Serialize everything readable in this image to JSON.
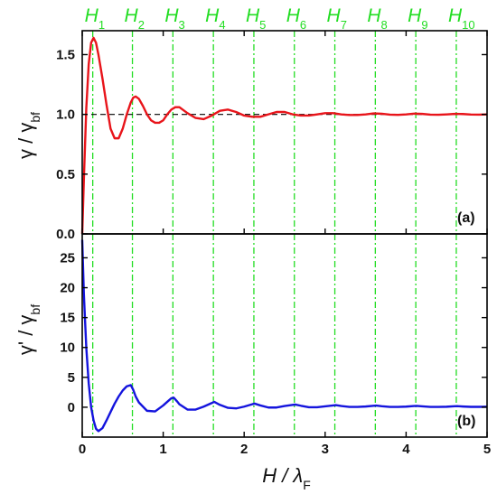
{
  "chart_data": [
    {
      "panel_tag": "(a)",
      "type": "line",
      "ylabel": {
        "main": "γ / γ",
        "sub": "bf"
      },
      "xlim": [
        0,
        5
      ],
      "ylim": [
        0,
        1.7
      ],
      "yticks": [
        "0.0",
        "0.5",
        "1.0",
        "1.5"
      ],
      "yticks_values": [
        0,
        0.5,
        1.0,
        1.5
      ],
      "reference_line": {
        "y": 1.0,
        "style": "dashed",
        "color": "#000000"
      },
      "series": [
        {
          "color": "#e8141a",
          "x": [
            0,
            0.02,
            0.05,
            0.08,
            0.11,
            0.14,
            0.17,
            0.2,
            0.25,
            0.3,
            0.35,
            0.4,
            0.45,
            0.5,
            0.55,
            0.6,
            0.63,
            0.66,
            0.7,
            0.75,
            0.8,
            0.85,
            0.9,
            0.95,
            1.0,
            1.05,
            1.1,
            1.15,
            1.2,
            1.3,
            1.4,
            1.5,
            1.6,
            1.7,
            1.8,
            1.9,
            2.0,
            2.1,
            2.2,
            2.3,
            2.4,
            2.5,
            2.6,
            2.7,
            2.8,
            2.9,
            3.0,
            3.1,
            3.2,
            3.3,
            3.4,
            3.5,
            3.6,
            3.7,
            3.8,
            3.9,
            4.0,
            4.1,
            4.2,
            4.3,
            4.4,
            4.5,
            4.6,
            4.7,
            4.8,
            4.9,
            5.0
          ],
          "y": [
            0.0,
            0.45,
            1.05,
            1.42,
            1.6,
            1.64,
            1.6,
            1.5,
            1.3,
            1.08,
            0.88,
            0.8,
            0.8,
            0.88,
            1.0,
            1.1,
            1.14,
            1.15,
            1.13,
            1.07,
            1.0,
            0.95,
            0.93,
            0.93,
            0.95,
            1.0,
            1.04,
            1.06,
            1.06,
            1.01,
            0.97,
            0.96,
            0.99,
            1.03,
            1.04,
            1.02,
            0.99,
            0.98,
            0.98,
            1.0,
            1.02,
            1.02,
            1.0,
            0.99,
            0.99,
            1.0,
            1.01,
            1.01,
            1.0,
            0.995,
            0.995,
            1.0,
            1.008,
            1.005,
            0.998,
            0.996,
            1.0,
            1.006,
            1.004,
            0.998,
            0.997,
            1.0,
            1.004,
            1.003,
            0.999,
            0.998,
            1.0
          ]
        }
      ]
    },
    {
      "panel_tag": "(b)",
      "type": "line",
      "ylabel": {
        "main": "γ' / γ",
        "sub": "bf"
      },
      "xlabel": {
        "main": "H / λ",
        "sub": "F"
      },
      "xlim": [
        0,
        5
      ],
      "ylim": [
        -5,
        29
      ],
      "xticks": [
        "0",
        "1",
        "2",
        "3",
        "4",
        "5"
      ],
      "xticks_values": [
        0,
        1,
        2,
        3,
        4,
        5
      ],
      "yticks": [
        "0",
        "5",
        "10",
        "15",
        "20",
        "25"
      ],
      "yticks_values": [
        0,
        5,
        10,
        15,
        20,
        25
      ],
      "series": [
        {
          "color": "#1414dd",
          "x": [
            0,
            0.02,
            0.05,
            0.08,
            0.11,
            0.14,
            0.17,
            0.2,
            0.25,
            0.3,
            0.35,
            0.4,
            0.45,
            0.5,
            0.55,
            0.6,
            0.63,
            0.66,
            0.7,
            0.8,
            0.9,
            1.0,
            1.05,
            1.1,
            1.13,
            1.17,
            1.2,
            1.3,
            1.4,
            1.5,
            1.6,
            1.63,
            1.7,
            1.8,
            1.9,
            2.0,
            2.1,
            2.13,
            2.2,
            2.3,
            2.4,
            2.5,
            2.6,
            2.63,
            2.7,
            2.8,
            2.9,
            3.0,
            3.1,
            3.13,
            3.2,
            3.3,
            3.4,
            3.5,
            3.6,
            3.63,
            3.7,
            3.8,
            3.9,
            4.0,
            4.1,
            4.13,
            4.2,
            4.3,
            4.4,
            4.5,
            4.6,
            4.63,
            4.7,
            4.8,
            4.9,
            5.0
          ],
          "y": [
            28,
            19,
            10,
            4,
            0,
            -2.2,
            -3.6,
            -4.0,
            -3.5,
            -2.2,
            -0.8,
            0.6,
            1.8,
            2.8,
            3.5,
            3.7,
            2.9,
            1.8,
            0.8,
            -0.6,
            -0.7,
            0.3,
            0.9,
            1.5,
            1.6,
            1.0,
            0.5,
            -0.4,
            -0.4,
            0.1,
            0.7,
            0.9,
            0.4,
            -0.1,
            -0.2,
            0.1,
            0.5,
            0.6,
            0.3,
            -0.05,
            -0.05,
            0.2,
            0.4,
            0.45,
            0.25,
            0.0,
            0.0,
            0.15,
            0.3,
            0.35,
            0.2,
            0.05,
            0.05,
            0.12,
            0.25,
            0.28,
            0.17,
            0.05,
            0.05,
            0.1,
            0.2,
            0.22,
            0.14,
            0.05,
            0.05,
            0.08,
            0.16,
            0.18,
            0.12,
            0.06,
            0.06,
            0.08
          ]
        }
      ]
    }
  ],
  "markers": [
    {
      "letter": "H",
      "sub": "1",
      "x": 0.13
    },
    {
      "letter": "H",
      "sub": "2",
      "x": 0.62
    },
    {
      "letter": "H",
      "sub": "3",
      "x": 1.12
    },
    {
      "letter": "H",
      "sub": "4",
      "x": 1.62
    },
    {
      "letter": "H",
      "sub": "5",
      "x": 2.12
    },
    {
      "letter": "H",
      "sub": "6",
      "x": 2.62
    },
    {
      "letter": "H",
      "sub": "7",
      "x": 3.12
    },
    {
      "letter": "H",
      "sub": "8",
      "x": 3.62
    },
    {
      "letter": "H",
      "sub": "9",
      "x": 4.12
    },
    {
      "letter": "H",
      "sub": "10",
      "x": 4.62
    }
  ],
  "marker_color": "#22dd22"
}
